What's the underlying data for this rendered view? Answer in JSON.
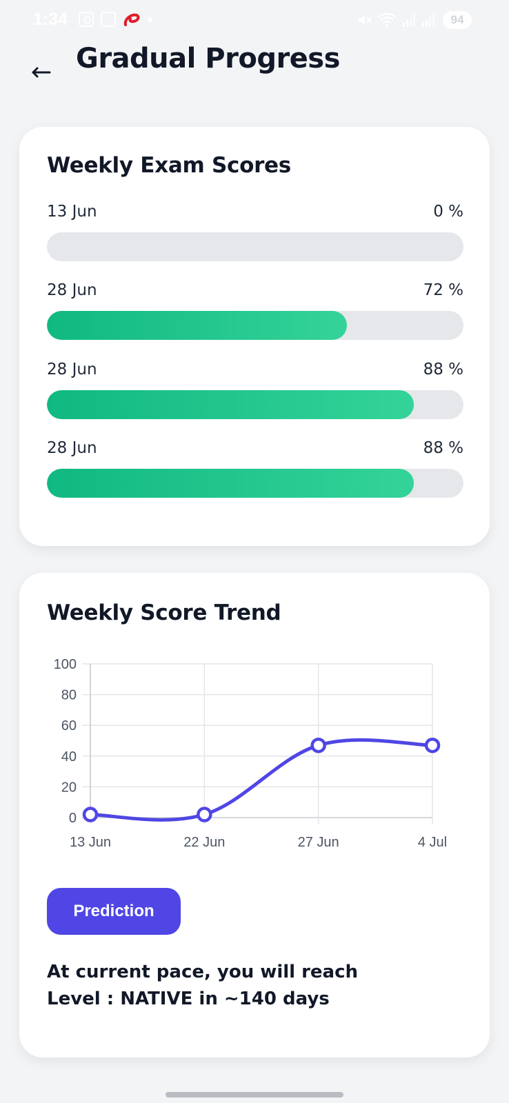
{
  "status_bar": {
    "time": "1:34",
    "battery": "94",
    "icons": [
      "screenshot-icon",
      "sim-icon",
      "carrier-logo-icon",
      "notification-dot-icon",
      "mute-icon",
      "wifi-icon",
      "signal-icon",
      "signal-icon",
      "battery-icon"
    ]
  },
  "header": {
    "back_icon": "arrow-left-icon",
    "title": "Gradual Progress"
  },
  "exam_scores": {
    "title": "Weekly Exam Scores",
    "items": [
      {
        "date": "13 Jun",
        "percent_label": "0 %",
        "value": 0
      },
      {
        "date": "28 Jun",
        "percent_label": "72 %",
        "value": 72
      },
      {
        "date": "28 Jun",
        "percent_label": "88 %",
        "value": 88
      },
      {
        "date": "28 Jun",
        "percent_label": "88 %",
        "value": 88
      }
    ],
    "fill_color_start": "#10b981",
    "fill_color_end": "#34d399",
    "track_color": "#e5e7eb"
  },
  "trend": {
    "title": "Weekly Score Trend",
    "prediction_button": "Prediction",
    "prediction_line1": "At current pace, you will reach",
    "prediction_line2": "Level : NATIVE in ~140 days"
  },
  "chart_data": {
    "type": "line",
    "categories": [
      "13 Jun",
      "22 Jun",
      "27 Jun",
      "4 Jul"
    ],
    "series": [
      {
        "values": [
          2,
          2,
          47,
          47
        ],
        "color": "#4f46e5"
      }
    ],
    "y_ticks": [
      0,
      20,
      40,
      60,
      80,
      100
    ],
    "ylim": [
      0,
      100
    ],
    "grid": true,
    "smooth": true
  }
}
